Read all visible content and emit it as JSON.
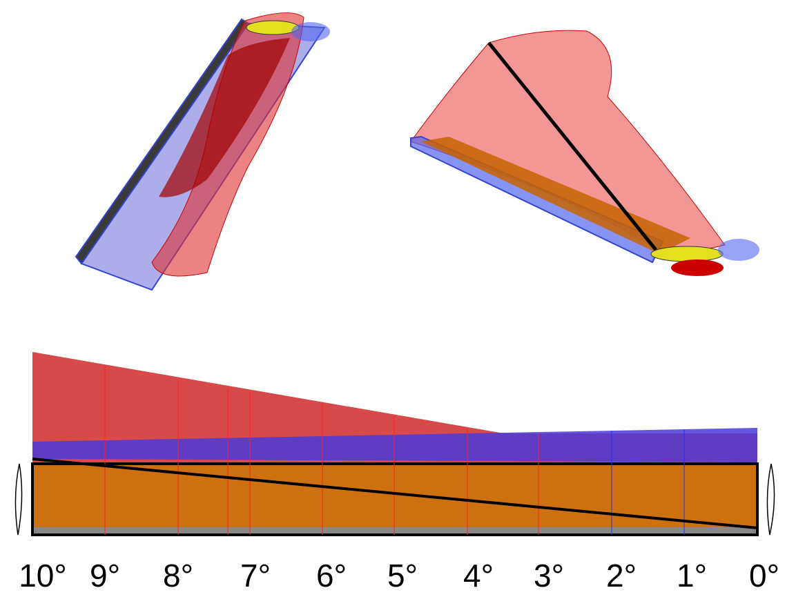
{
  "scale": {
    "labels": [
      "10°",
      "9°",
      "8°",
      "7°",
      "6°",
      "5°",
      "4°",
      "3°",
      "2°",
      "1°",
      "0°"
    ]
  }
}
